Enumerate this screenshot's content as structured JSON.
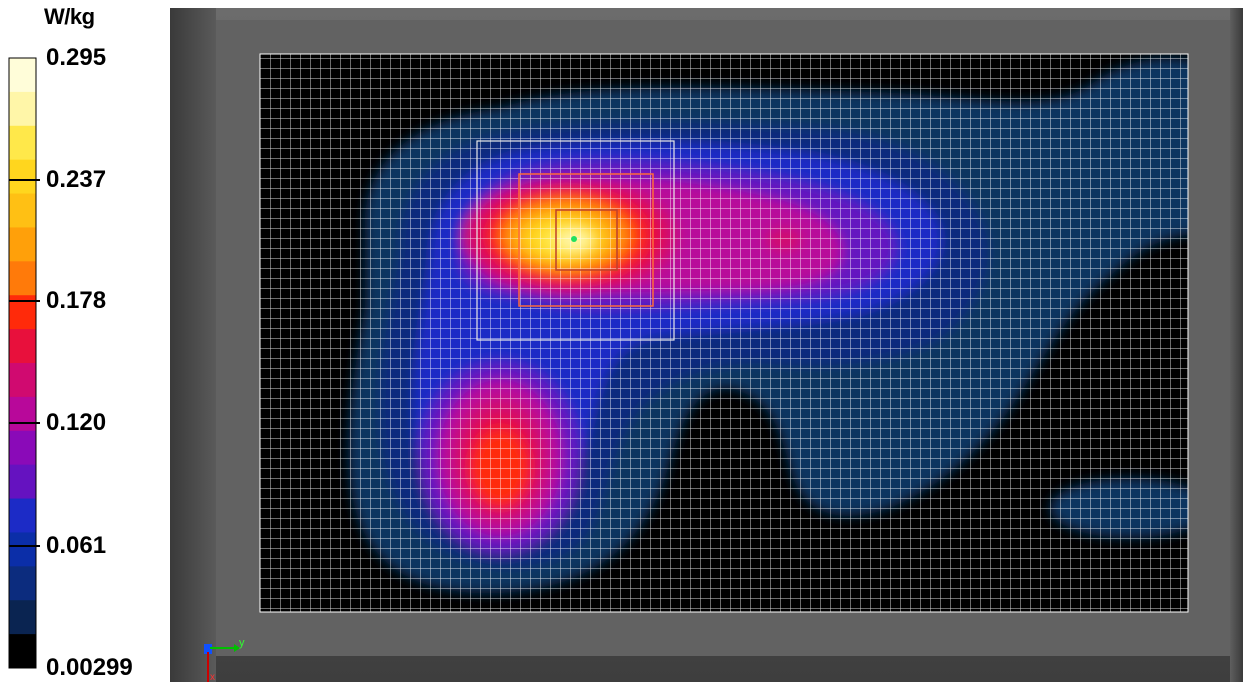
{
  "colorbar": {
    "unit": "W/kg",
    "tick_labels": [
      "0.295",
      "0.237",
      "0.178",
      "0.120",
      "0.061",
      "0.00299"
    ],
    "colors_top_to_bottom": [
      "#fffdd9",
      "#fff6a8",
      "#ffe84a",
      "#ffd61e",
      "#ffc014",
      "#ffa00a",
      "#ff7a0a",
      "#ff2a0a",
      "#e8103c",
      "#d00a70",
      "#b8089a",
      "#8a0ab8",
      "#6512c0",
      "#1c2bc6",
      "#0b2ea8",
      "#0c2c7e",
      "#0a2451",
      "#000000"
    ]
  },
  "chart_data": {
    "type": "heatmap",
    "title": "",
    "colorbar_unit": "W/kg",
    "value_range": [
      0.00299,
      0.295
    ],
    "colorbar_ticks": [
      0.295,
      0.237,
      0.178,
      0.12,
      0.061,
      0.00299
    ],
    "peak_value": 0.295,
    "hotspots": [
      {
        "label": "primary peak",
        "value": 0.295
      },
      {
        "label": "secondary peak",
        "value": 0.18
      },
      {
        "label": "tertiary peak",
        "value": 0.14
      }
    ],
    "grid": true
  },
  "axis_indicator": {
    "y_label": "y",
    "colors": {
      "x": "#cc0000",
      "y": "#00c000",
      "z": "#0000ff"
    }
  }
}
